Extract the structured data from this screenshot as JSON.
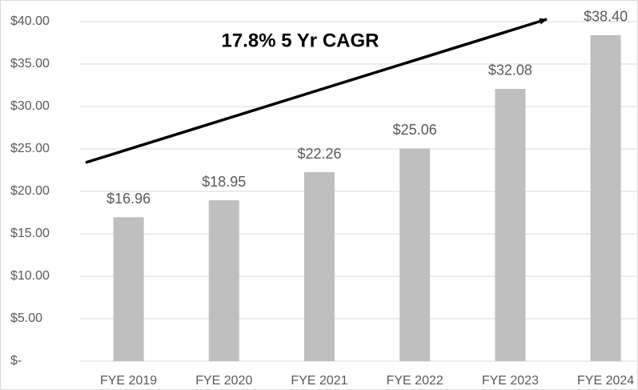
{
  "chart_data": {
    "type": "bar",
    "annotation": "17.8% 5 Yr CAGR",
    "categories": [
      "FYE 2019",
      "FYE 2020",
      "FYE 2021",
      "FYE 2022",
      "FYE 2023",
      "FYE 2024"
    ],
    "values": [
      16.96,
      18.95,
      22.26,
      25.06,
      32.08,
      38.4
    ],
    "value_labels": [
      "$16.96",
      "$18.95",
      "$22.26",
      "$25.06",
      "$32.08",
      "$38.40"
    ],
    "color": "#bfbfbf",
    "ylim": [
      0,
      40
    ],
    "yticks": [
      {
        "value": 0,
        "label": "$-"
      },
      {
        "value": 5,
        "label": "$5.00"
      },
      {
        "value": 10,
        "label": "$10.00"
      },
      {
        "value": 15,
        "label": "$15.00"
      },
      {
        "value": 20,
        "label": "$20.00"
      },
      {
        "value": 25,
        "label": "$25.00"
      },
      {
        "value": 30,
        "label": "$30.00"
      },
      {
        "value": 35,
        "label": "$35.00"
      },
      {
        "value": 40,
        "label": "$40.00"
      }
    ],
    "grid": true
  }
}
